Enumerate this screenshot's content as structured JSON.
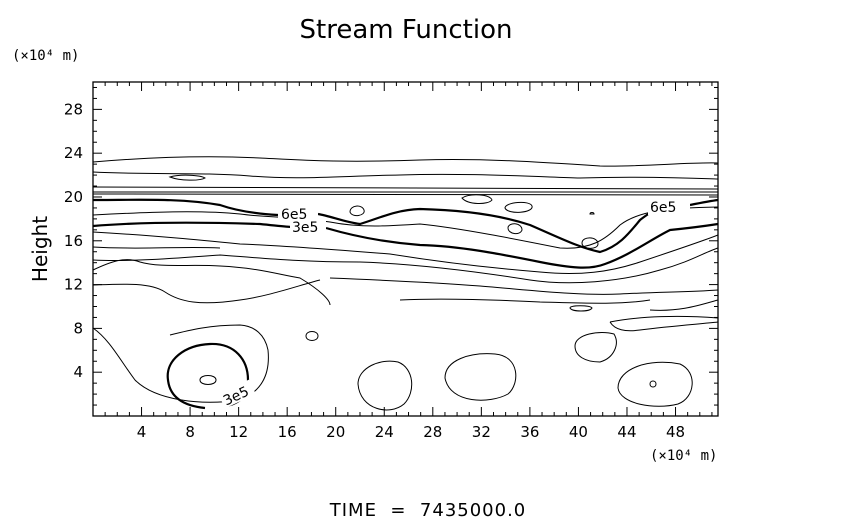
{
  "chart_data": {
    "type": "contour",
    "title": "Stream Function",
    "ylabel": "Height",
    "x_unit": "(×10⁴ m)",
    "y_unit": "(×10⁴ m)",
    "x_range": [
      0,
      51.5
    ],
    "y_range": [
      0,
      30.5
    ],
    "x_ticks": [
      4,
      8,
      12,
      16,
      20,
      24,
      28,
      32,
      36,
      40,
      44,
      48
    ],
    "y_ticks": [
      4,
      8,
      12,
      16,
      20,
      24,
      28
    ],
    "contour_labels": [
      "6e5",
      "3e5",
      "6e5",
      "3e5"
    ],
    "footer": "TIME  =  7435000.0"
  }
}
